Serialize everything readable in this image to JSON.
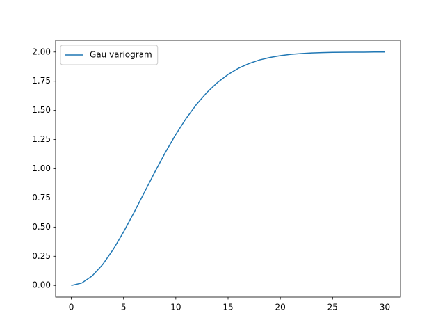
{
  "chart_data": {
    "type": "line",
    "x": [
      0,
      1,
      2,
      3,
      4,
      5,
      6,
      7,
      8,
      9,
      10,
      11,
      12,
      13,
      14,
      15,
      16,
      17,
      18,
      19,
      20,
      21,
      22,
      23,
      24,
      25,
      26,
      27,
      28,
      29,
      30
    ],
    "series": [
      {
        "name": "Gau variogram",
        "color": "#1f77b4",
        "values": [
          0,
          0.021,
          0.082,
          0.179,
          0.307,
          0.458,
          0.625,
          0.799,
          0.973,
          1.14,
          1.294,
          1.433,
          1.554,
          1.656,
          1.74,
          1.808,
          1.861,
          1.901,
          1.932,
          1.953,
          1.969,
          1.98,
          1.987,
          1.992,
          1.995,
          1.997,
          1.998,
          1.999,
          1.999,
          2.0,
          2.0
        ]
      }
    ],
    "xlim": [
      -1.5,
      31.5
    ],
    "ylim": [
      -0.1,
      2.1
    ],
    "xticks": [
      0,
      5,
      10,
      15,
      20,
      25,
      30
    ],
    "yticks": [
      {
        "value": 0,
        "label": "0.00"
      },
      {
        "value": 0.25,
        "label": "0.25"
      },
      {
        "value": 0.5,
        "label": "0.50"
      },
      {
        "value": 0.75,
        "label": "0.75"
      },
      {
        "value": 1,
        "label": "1.00"
      },
      {
        "value": 1.25,
        "label": "1.25"
      },
      {
        "value": 1.5,
        "label": "1.50"
      },
      {
        "value": 1.75,
        "label": "1.75"
      },
      {
        "value": 2,
        "label": "2.00"
      }
    ],
    "legend": "upper left",
    "grid": false
  }
}
